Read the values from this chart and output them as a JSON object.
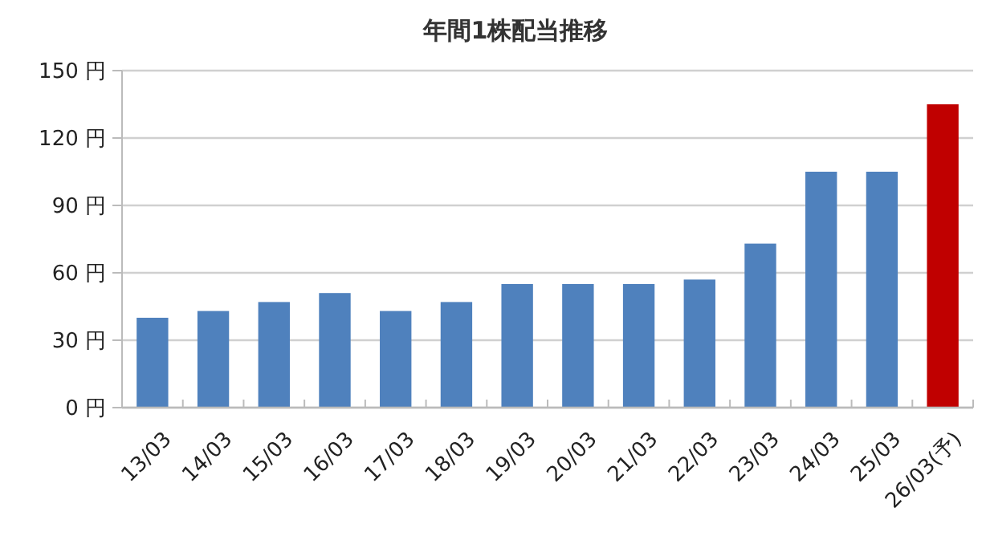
{
  "chart_data": {
    "type": "bar",
    "title": "年間1株配当推移",
    "categories": [
      "13/03",
      "14/03",
      "15/03",
      "16/03",
      "17/03",
      "18/03",
      "19/03",
      "20/03",
      "21/03",
      "22/03",
      "23/03",
      "24/03",
      "25/03",
      "26/03(予)"
    ],
    "values": [
      40,
      43,
      47,
      51,
      43,
      47,
      55,
      55,
      55,
      57,
      73,
      105,
      105,
      135
    ],
    "colors": [
      "#4f81bd",
      "#4f81bd",
      "#4f81bd",
      "#4f81bd",
      "#4f81bd",
      "#4f81bd",
      "#4f81bd",
      "#4f81bd",
      "#4f81bd",
      "#4f81bd",
      "#4f81bd",
      "#4f81bd",
      "#4f81bd",
      "#c00000"
    ],
    "ylim": [
      0,
      150
    ],
    "yticks": [
      {
        "value": 0,
        "label": "0 円"
      },
      {
        "value": 30,
        "label": "30 円"
      },
      {
        "value": 60,
        "label": "60 円"
      },
      {
        "value": 90,
        "label": "90 円"
      },
      {
        "value": 120,
        "label": "120 円"
      },
      {
        "value": 150,
        "label": "150 円"
      }
    ],
    "grid": "y"
  }
}
